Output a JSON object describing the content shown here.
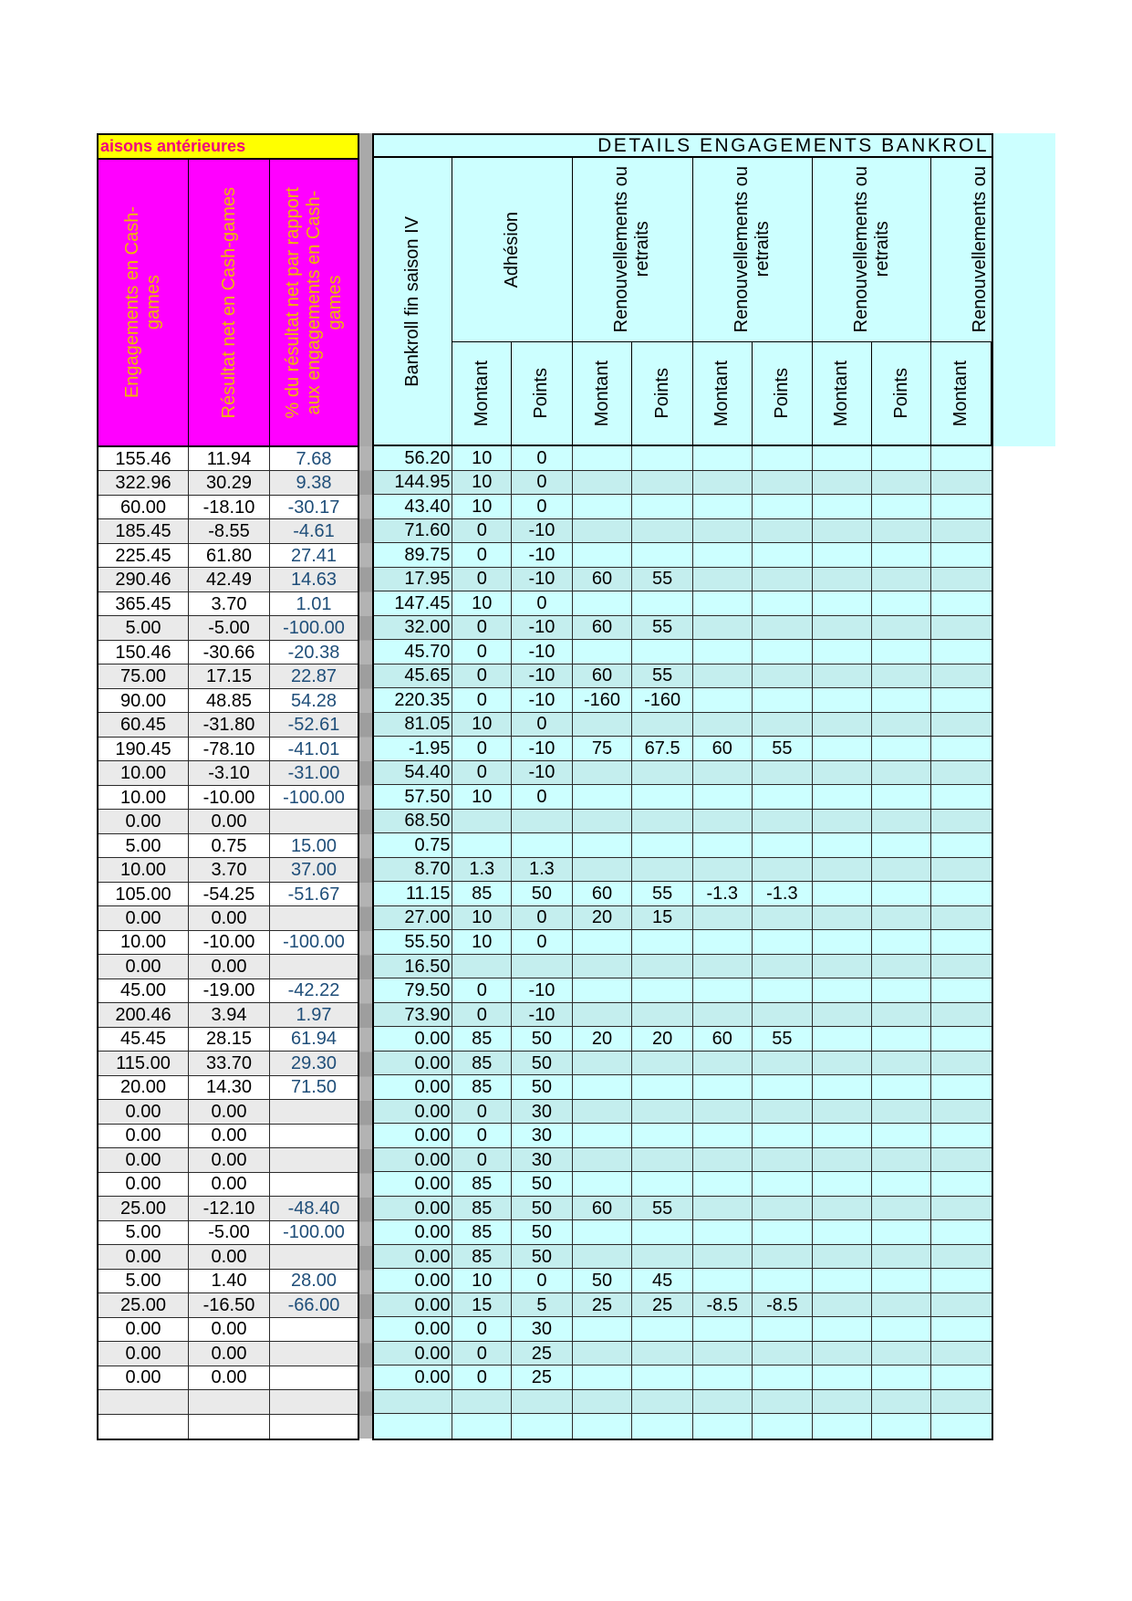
{
  "banner": {
    "left_title": "aisons antérieures",
    "right_title": "DETAILS ENGAGEMENTS BANKROL"
  },
  "header": {
    "engagements": "Engagements en Cash-\ngames",
    "resultat": "Résultat net en Cash-games",
    "pct": "% du résultat net par rapport\naux engagements en Cash-\ngames",
    "bankroll": "Bankroll fin saison IV",
    "adhesion": "Adhésion",
    "renouv": "Renouvellements ou\nretraits",
    "renouv_last": "Renouvellements ou",
    "montant": "Montant",
    "points": "Points"
  },
  "colors": {
    "magenta_header": "#FF00FF",
    "gold_header_text": "#EEB900",
    "yellow_banner": "#FFFF00",
    "banner_text_pink": "#F0047E",
    "cyan_header": "#CCFFFF",
    "cyan_row": "#CCFFFF",
    "cyan_row_alt": "#C4EEEE",
    "white_row": "#FFFFFF",
    "gray_row_alt": "#EAEAEA",
    "pct_text_blue": "#1F4E79",
    "separator_gray": "#A9A9A9"
  },
  "rows": [
    [
      "155.46",
      "11.94",
      "7.68",
      "56.20",
      "10",
      "0",
      "",
      "",
      "",
      "",
      "",
      "",
      ""
    ],
    [
      "322.96",
      "30.29",
      "9.38",
      "144.95",
      "10",
      "0",
      "",
      "",
      "",
      "",
      "",
      "",
      ""
    ],
    [
      "60.00",
      "-18.10",
      "-30.17",
      "43.40",
      "10",
      "0",
      "",
      "",
      "",
      "",
      "",
      "",
      ""
    ],
    [
      "185.45",
      "-8.55",
      "-4.61",
      "71.60",
      "0",
      "-10",
      "",
      "",
      "",
      "",
      "",
      "",
      ""
    ],
    [
      "225.45",
      "61.80",
      "27.41",
      "89.75",
      "0",
      "-10",
      "",
      "",
      "",
      "",
      "",
      "",
      ""
    ],
    [
      "290.46",
      "42.49",
      "14.63",
      "17.95",
      "0",
      "-10",
      "60",
      "55",
      "",
      "",
      "",
      "",
      ""
    ],
    [
      "365.45",
      "3.70",
      "1.01",
      "147.45",
      "10",
      "0",
      "",
      "",
      "",
      "",
      "",
      "",
      ""
    ],
    [
      "5.00",
      "-5.00",
      "-100.00",
      "32.00",
      "0",
      "-10",
      "60",
      "55",
      "",
      "",
      "",
      "",
      ""
    ],
    [
      "150.46",
      "-30.66",
      "-20.38",
      "45.70",
      "0",
      "-10",
      "",
      "",
      "",
      "",
      "",
      "",
      ""
    ],
    [
      "75.00",
      "17.15",
      "22.87",
      "45.65",
      "0",
      "-10",
      "60",
      "55",
      "",
      "",
      "",
      "",
      ""
    ],
    [
      "90.00",
      "48.85",
      "54.28",
      "220.35",
      "0",
      "-10",
      "-160",
      "-160",
      "",
      "",
      "",
      "",
      ""
    ],
    [
      "60.45",
      "-31.80",
      "-52.61",
      "81.05",
      "10",
      "0",
      "",
      "",
      "",
      "",
      "",
      "",
      ""
    ],
    [
      "190.45",
      "-78.10",
      "-41.01",
      "-1.95",
      "0",
      "-10",
      "75",
      "67.5",
      "60",
      "55",
      "",
      "",
      ""
    ],
    [
      "10.00",
      "-3.10",
      "-31.00",
      "54.40",
      "0",
      "-10",
      "",
      "",
      "",
      "",
      "",
      "",
      ""
    ],
    [
      "10.00",
      "-10.00",
      "-100.00",
      "57.50",
      "10",
      "0",
      "",
      "",
      "",
      "",
      "",
      "",
      ""
    ],
    [
      "0.00",
      "0.00",
      "",
      "68.50",
      "",
      "",
      "",
      "",
      "",
      "",
      "",
      "",
      ""
    ],
    [
      "5.00",
      "0.75",
      "15.00",
      "0.75",
      "",
      "",
      "",
      "",
      "",
      "",
      "",
      "",
      ""
    ],
    [
      "10.00",
      "3.70",
      "37.00",
      "8.70",
      "1.3",
      "1.3",
      "",
      "",
      "",
      "",
      "",
      "",
      ""
    ],
    [
      "105.00",
      "-54.25",
      "-51.67",
      "11.15",
      "85",
      "50",
      "60",
      "55",
      "-1.3",
      "-1.3",
      "",
      "",
      ""
    ],
    [
      "0.00",
      "0.00",
      "",
      "27.00",
      "10",
      "0",
      "20",
      "15",
      "",
      "",
      "",
      "",
      ""
    ],
    [
      "10.00",
      "-10.00",
      "-100.00",
      "55.50",
      "10",
      "0",
      "",
      "",
      "",
      "",
      "",
      "",
      ""
    ],
    [
      "0.00",
      "0.00",
      "",
      "16.50",
      "",
      "",
      "",
      "",
      "",
      "",
      "",
      "",
      ""
    ],
    [
      "45.00",
      "-19.00",
      "-42.22",
      "79.50",
      "0",
      "-10",
      "",
      "",
      "",
      "",
      "",
      "",
      ""
    ],
    [
      "200.46",
      "3.94",
      "1.97",
      "73.90",
      "0",
      "-10",
      "",
      "",
      "",
      "",
      "",
      "",
      ""
    ],
    [
      "45.45",
      "28.15",
      "61.94",
      "0.00",
      "85",
      "50",
      "20",
      "20",
      "60",
      "55",
      "",
      "",
      ""
    ],
    [
      "115.00",
      "33.70",
      "29.30",
      "0.00",
      "85",
      "50",
      "",
      "",
      "",
      "",
      "",
      "",
      ""
    ],
    [
      "20.00",
      "14.30",
      "71.50",
      "0.00",
      "85",
      "50",
      "",
      "",
      "",
      "",
      "",
      "",
      ""
    ],
    [
      "0.00",
      "0.00",
      "",
      "0.00",
      "0",
      "30",
      "",
      "",
      "",
      "",
      "",
      "",
      ""
    ],
    [
      "0.00",
      "0.00",
      "",
      "0.00",
      "0",
      "30",
      "",
      "",
      "",
      "",
      "",
      "",
      ""
    ],
    [
      "0.00",
      "0.00",
      "",
      "0.00",
      "0",
      "30",
      "",
      "",
      "",
      "",
      "",
      "",
      ""
    ],
    [
      "0.00",
      "0.00",
      "",
      "0.00",
      "85",
      "50",
      "",
      "",
      "",
      "",
      "",
      "",
      ""
    ],
    [
      "25.00",
      "-12.10",
      "-48.40",
      "0.00",
      "85",
      "50",
      "60",
      "55",
      "",
      "",
      "",
      "",
      ""
    ],
    [
      "5.00",
      "-5.00",
      "-100.00",
      "0.00",
      "85",
      "50",
      "",
      "",
      "",
      "",
      "",
      "",
      ""
    ],
    [
      "0.00",
      "0.00",
      "",
      "0.00",
      "85",
      "50",
      "",
      "",
      "",
      "",
      "",
      "",
      ""
    ],
    [
      "5.00",
      "1.40",
      "28.00",
      "0.00",
      "10",
      "0",
      "50",
      "45",
      "",
      "",
      "",
      "",
      ""
    ],
    [
      "25.00",
      "-16.50",
      "-66.00",
      "0.00",
      "15",
      "5",
      "25",
      "25",
      "-8.5",
      "-8.5",
      "",
      "",
      ""
    ],
    [
      "0.00",
      "0.00",
      "",
      "0.00",
      "0",
      "30",
      "",
      "",
      "",
      "",
      "",
      "",
      ""
    ],
    [
      "0.00",
      "0.00",
      "",
      "0.00",
      "0",
      "25",
      "",
      "",
      "",
      "",
      "",
      "",
      ""
    ],
    [
      "0.00",
      "0.00",
      "",
      "0.00",
      "0",
      "25",
      "",
      "",
      "",
      "",
      "",
      "",
      ""
    ],
    [
      "",
      "",
      "",
      "",
      "",
      "",
      "",
      "",
      "",
      "",
      "",
      "",
      ""
    ],
    [
      "",
      "",
      "",
      "",
      "",
      "",
      "",
      "",
      "",
      "",
      "",
      "",
      ""
    ]
  ]
}
